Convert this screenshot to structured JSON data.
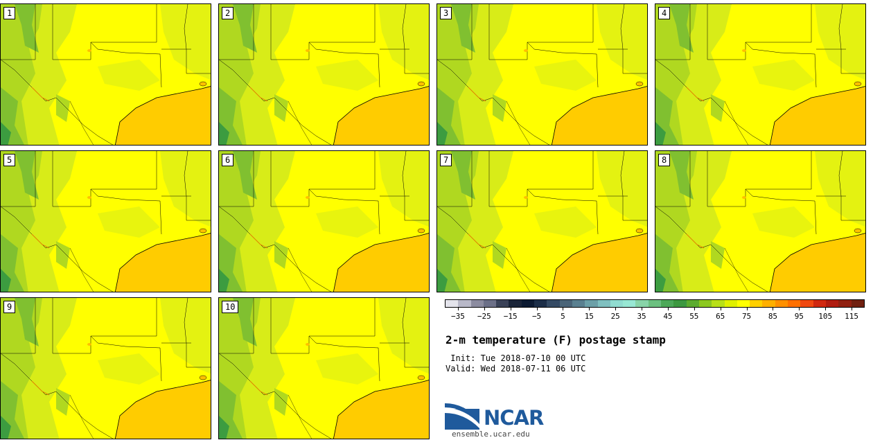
{
  "panels": [
    {
      "number": "1"
    },
    {
      "number": "2"
    },
    {
      "number": "3"
    },
    {
      "number": "4"
    },
    {
      "number": "5"
    },
    {
      "number": "6"
    },
    {
      "number": "7"
    },
    {
      "number": "8"
    },
    {
      "number": "9"
    },
    {
      "number": "10"
    }
  ],
  "colorbar": {
    "colors": [
      "#e4e4ec",
      "#b8b8c8",
      "#8c8ca0",
      "#6c7088",
      "#3a4258",
      "#1a2438",
      "#0c1a32",
      "#1c2e48",
      "#344a64",
      "#4a6478",
      "#5a8090",
      "#6ca0a8",
      "#80c0c0",
      "#90dcd0",
      "#98e8d4",
      "#88d4a8",
      "#6cc080",
      "#4ca858",
      "#3c9840",
      "#5cac30",
      "#8cc820",
      "#b8e018",
      "#e0f000",
      "#ffff00",
      "#ffd000",
      "#ffb000",
      "#ff9000",
      "#ff7000",
      "#f04810",
      "#d02810",
      "#b01c10",
      "#902010",
      "#702010"
    ],
    "tick_labels": [
      "−35",
      "−25",
      "−15",
      "−5",
      "5",
      "15",
      "25",
      "35",
      "45",
      "55",
      "65",
      "75",
      "85",
      "95",
      "105",
      "115"
    ],
    "min": -40,
    "max": 120,
    "tick_values": [
      -35,
      -25,
      -15,
      -5,
      5,
      15,
      25,
      35,
      45,
      55,
      65,
      75,
      85,
      95,
      105,
      115
    ]
  },
  "title": "2-m temperature (F) postage stamp",
  "init_line": " Init: Tue 2018-07-10 00 UTC",
  "valid_line": "Valid: Wed 2018-07-11 06 UTC",
  "logo": {
    "text": "NCAR",
    "url": "ensemble.ucar.edu"
  },
  "map_colors": {
    "land": "#ffff00",
    "gulf": "#ffcc00",
    "green_light": "#d8ec18",
    "green_mid": "#b0d820",
    "green_dark": "#80c030",
    "green_deep": "#3c9c40"
  }
}
